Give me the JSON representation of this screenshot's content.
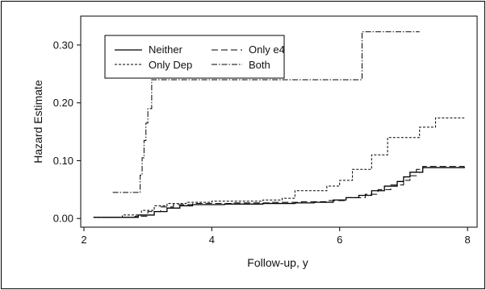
{
  "chart_data": {
    "type": "line",
    "title": "",
    "xlabel": "Follow-up, y",
    "ylabel": "Hazard Estimate",
    "xlim": [
      1.95,
      8.15
    ],
    "ylim": [
      -0.015,
      0.35
    ],
    "xticks": [
      2,
      4,
      6,
      8
    ],
    "xtick_labels": [
      "2",
      "4",
      "6",
      "8"
    ],
    "yticks": [
      0.0,
      0.1,
      0.2,
      0.3
    ],
    "ytick_labels": [
      "0.00",
      "0.10",
      "0.20",
      "0.30"
    ],
    "grid": false,
    "legend_position": "top-left",
    "step": true,
    "series": [
      {
        "name": "Neither",
        "style": "solid",
        "points": [
          [
            2.15,
            0.002
          ],
          [
            2.5,
            0.002
          ],
          [
            2.85,
            0.006
          ],
          [
            3.1,
            0.012
          ],
          [
            3.3,
            0.018
          ],
          [
            3.5,
            0.022
          ],
          [
            3.7,
            0.024
          ],
          [
            4.2,
            0.025
          ],
          [
            4.8,
            0.026
          ],
          [
            5.3,
            0.027
          ],
          [
            5.6,
            0.028
          ],
          [
            5.9,
            0.032
          ],
          [
            6.1,
            0.036
          ],
          [
            6.3,
            0.04
          ],
          [
            6.5,
            0.048
          ],
          [
            6.7,
            0.056
          ],
          [
            6.9,
            0.064
          ],
          [
            7.0,
            0.072
          ],
          [
            7.1,
            0.08
          ],
          [
            7.3,
            0.088
          ],
          [
            7.95,
            0.09
          ]
        ]
      },
      {
        "name": "Only Dep",
        "style": "dashed-short",
        "points": [
          [
            2.15,
            0.002
          ],
          [
            2.6,
            0.006
          ],
          [
            2.9,
            0.014
          ],
          [
            3.1,
            0.022
          ],
          [
            3.3,
            0.026
          ],
          [
            3.6,
            0.028
          ],
          [
            4.0,
            0.03
          ],
          [
            4.8,
            0.032
          ],
          [
            5.1,
            0.035
          ],
          [
            5.3,
            0.048
          ],
          [
            5.8,
            0.056
          ],
          [
            6.0,
            0.066
          ],
          [
            6.2,
            0.085
          ],
          [
            6.5,
            0.11
          ],
          [
            6.75,
            0.14
          ],
          [
            7.25,
            0.158
          ],
          [
            7.5,
            0.174
          ],
          [
            7.95,
            0.174
          ]
        ]
      },
      {
        "name": "Only e4",
        "style": "dashed-long",
        "points": [
          [
            2.15,
            0.002
          ],
          [
            2.8,
            0.004
          ],
          [
            3.0,
            0.012
          ],
          [
            3.2,
            0.02
          ],
          [
            3.4,
            0.024
          ],
          [
            3.7,
            0.026
          ],
          [
            4.3,
            0.027
          ],
          [
            4.9,
            0.028
          ],
          [
            5.4,
            0.029
          ],
          [
            5.8,
            0.031
          ],
          [
            6.1,
            0.036
          ],
          [
            6.4,
            0.042
          ],
          [
            6.6,
            0.05
          ],
          [
            6.8,
            0.058
          ],
          [
            7.0,
            0.066
          ],
          [
            7.1,
            0.074
          ],
          [
            7.2,
            0.085
          ],
          [
            7.3,
            0.09
          ],
          [
            7.95,
            0.09
          ]
        ]
      },
      {
        "name": "Both",
        "style": "dash-dot",
        "points": [
          [
            2.45,
            0.045
          ],
          [
            2.85,
            0.045
          ],
          [
            2.88,
            0.075
          ],
          [
            2.91,
            0.105
          ],
          [
            2.94,
            0.135
          ],
          [
            2.97,
            0.165
          ],
          [
            3.0,
            0.19
          ],
          [
            3.06,
            0.24
          ],
          [
            6.35,
            0.24
          ],
          [
            6.35,
            0.323
          ],
          [
            7.25,
            0.323
          ]
        ]
      }
    ]
  }
}
